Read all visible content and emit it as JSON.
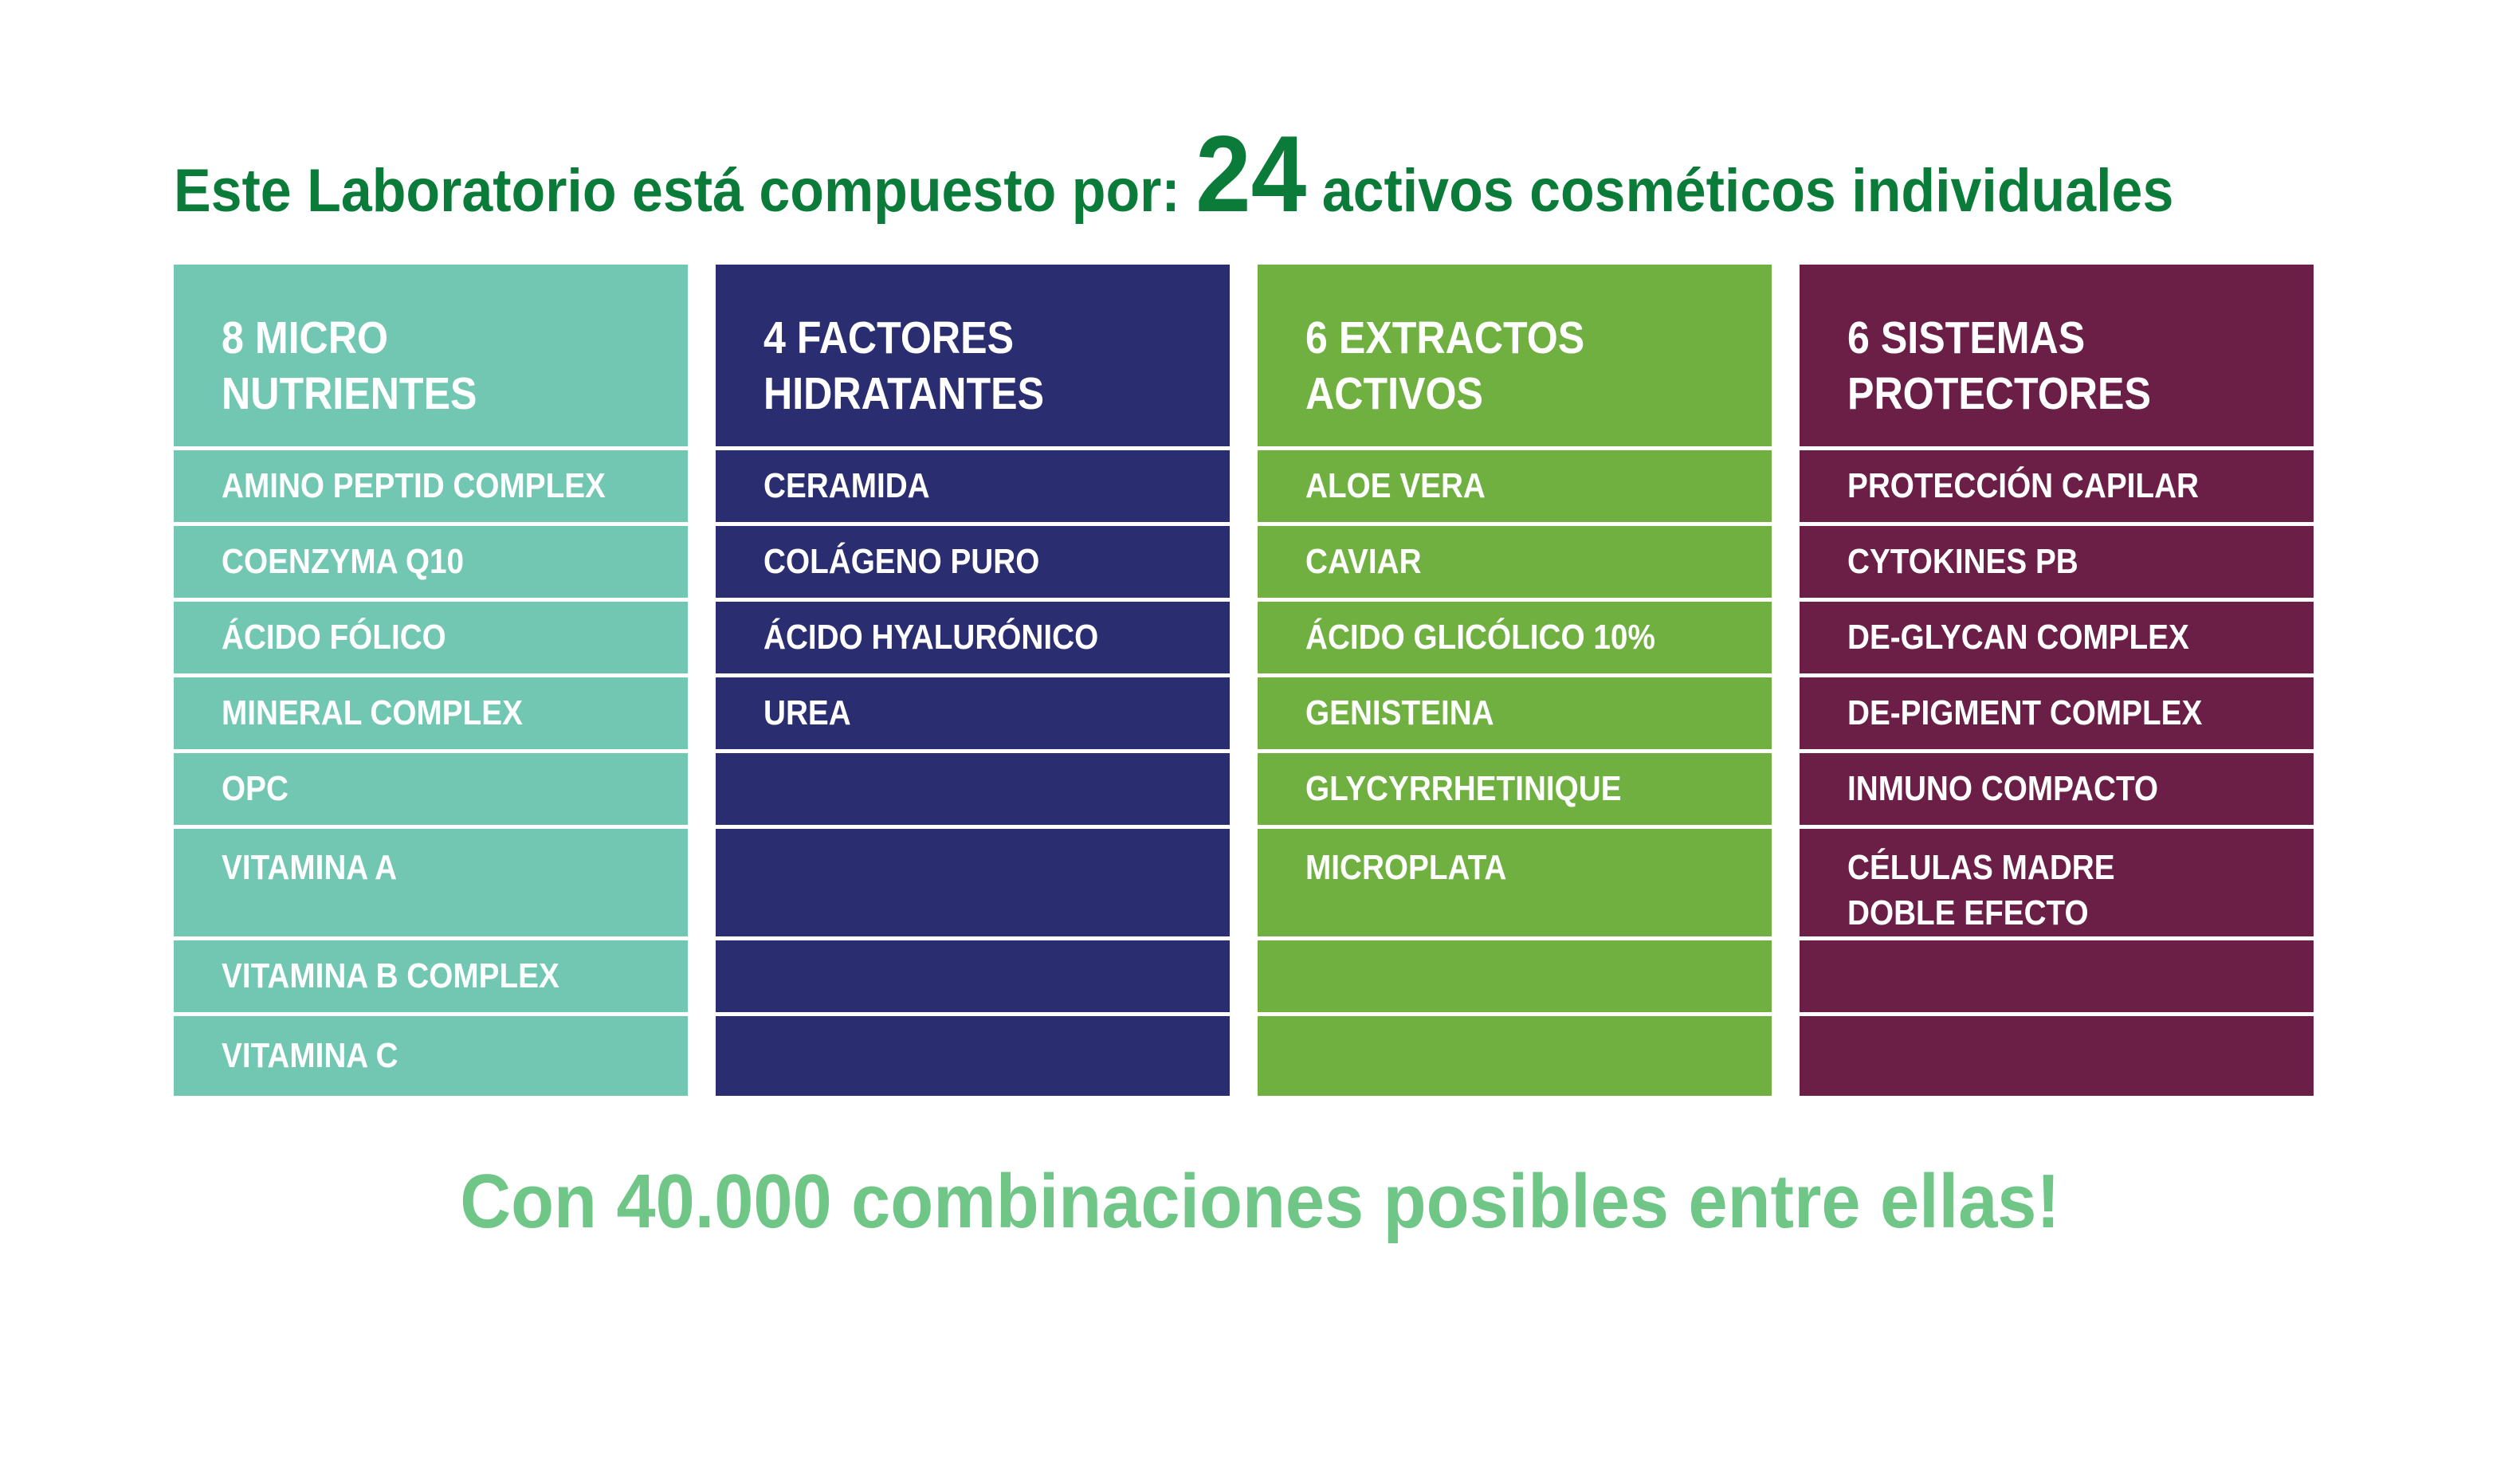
{
  "title": {
    "prefix": "Este Laboratorio está compuesto por: ",
    "number": "24",
    "suffix": " activos cosméticos individuales",
    "color": "#0B7B39"
  },
  "columns": [
    {
      "id": "micro-nutrientes",
      "header": "8 MICRO\nNUTRIENTES",
      "color": "#72C7B2",
      "items": [
        "AMINO PEPTID COMPLEX",
        "COENZYMA Q10",
        "ÁCIDO FÓLICO",
        "MINERAL COMPLEX",
        "OPC",
        "VITAMINA A",
        "VITAMINA B COMPLEX",
        "VITAMINA C"
      ]
    },
    {
      "id": "factores-hidratantes",
      "header": "4 FACTORES\nHIDRATANTES",
      "color": "#2A2E70",
      "items": [
        "CERAMIDA",
        "COLÁGENO PURO",
        "ÁCIDO HYALURÓNICO",
        "UREA",
        "",
        "",
        "",
        ""
      ]
    },
    {
      "id": "extractos-activos",
      "header": "6 EXTRACTOS\nACTIVOS",
      "color": "#6FB041",
      "items": [
        "ALOE VERA",
        "CAVIAR",
        "ÁCIDO GLICÓLICO 10%",
        "GENISTEINA",
        "GLYCYRRHETINIQUE",
        "MICROPLATA",
        "",
        ""
      ]
    },
    {
      "id": "sistemas-protectores",
      "header": "6 SISTEMAS\nPROTECTORES",
      "color": "#6B1F46",
      "items": [
        "PROTECCIÓN CAPILAR",
        "CYTOKINES PB",
        "DE-GLYCAN COMPLEX",
        "DE-PIGMENT COMPLEX",
        "INMUNO COMPACTO",
        "CÉLULAS MADRE\nDOBLE EFECTO",
        "",
        ""
      ]
    }
  ],
  "footer": {
    "text": "Con 40.000 combinaciones posibles entre ellas!",
    "color": "#6FC687"
  },
  "item_text_color": "#FFFFFF"
}
